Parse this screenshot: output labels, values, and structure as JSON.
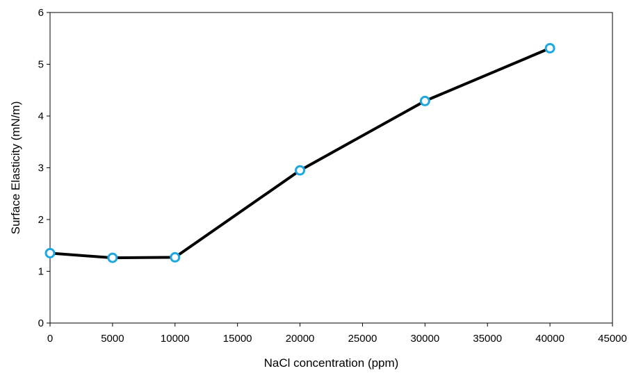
{
  "chart_data": {
    "type": "line",
    "title": "",
    "xlabel": "NaCl concentration  (ppm)",
    "ylabel": "Surface Elasticity  (mN/m)",
    "xlim": [
      0,
      45000
    ],
    "ylim": [
      0,
      6
    ],
    "x_ticks": [
      0,
      5000,
      10000,
      15000,
      20000,
      25000,
      30000,
      35000,
      40000,
      45000
    ],
    "y_ticks": [
      0,
      1,
      2,
      3,
      4,
      5,
      6
    ],
    "grid": false,
    "legend": "none",
    "series": [
      {
        "x": [
          0,
          5000,
          10000,
          20000,
          30000,
          40000
        ],
        "y": [
          1.35,
          1.26,
          1.27,
          2.95,
          4.29,
          5.31
        ]
      }
    ],
    "colors": {
      "line": "#000000",
      "marker_edge": "#1fa7e0",
      "marker_fill": "#ffffff",
      "axes": "#000000"
    }
  }
}
